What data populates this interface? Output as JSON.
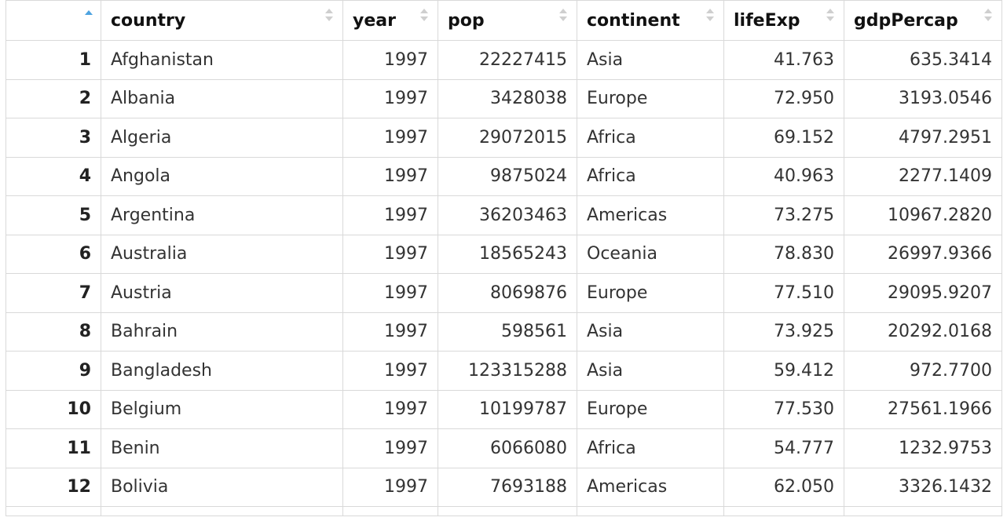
{
  "table": {
    "columns": [
      "",
      "country",
      "year",
      "pop",
      "continent",
      "lifeExp",
      "gdpPercap"
    ],
    "rows": [
      [
        "1",
        "Afghanistan",
        "1997",
        "22227415",
        "Asia",
        "41.763",
        "635.3414"
      ],
      [
        "2",
        "Albania",
        "1997",
        "3428038",
        "Europe",
        "72.950",
        "3193.0546"
      ],
      [
        "3",
        "Algeria",
        "1997",
        "29072015",
        "Africa",
        "69.152",
        "4797.2951"
      ],
      [
        "4",
        "Angola",
        "1997",
        "9875024",
        "Africa",
        "40.963",
        "2277.1409"
      ],
      [
        "5",
        "Argentina",
        "1997",
        "36203463",
        "Americas",
        "73.275",
        "10967.2820"
      ],
      [
        "6",
        "Australia",
        "1997",
        "18565243",
        "Oceania",
        "78.830",
        "26997.9366"
      ],
      [
        "7",
        "Austria",
        "1997",
        "8069876",
        "Europe",
        "77.510",
        "29095.9207"
      ],
      [
        "8",
        "Bahrain",
        "1997",
        "598561",
        "Asia",
        "73.925",
        "20292.0168"
      ],
      [
        "9",
        "Bangladesh",
        "1997",
        "123315288",
        "Asia",
        "59.412",
        "972.7700"
      ],
      [
        "10",
        "Belgium",
        "1997",
        "10199787",
        "Europe",
        "77.530",
        "27561.1966"
      ],
      [
        "11",
        "Benin",
        "1997",
        "6066080",
        "Africa",
        "54.777",
        "1232.9753"
      ],
      [
        "12",
        "Bolivia",
        "1997",
        "7693188",
        "Americas",
        "62.050",
        "3326.1432"
      ]
    ]
  },
  "colors": {
    "sort_active": "#4ea3e0",
    "sort_inactive": "#cfcfcf",
    "border": "#d9d9d9"
  },
  "icons": {
    "sort_active": "sort-ascending-icon",
    "sort_inactive": "sort-icon"
  }
}
